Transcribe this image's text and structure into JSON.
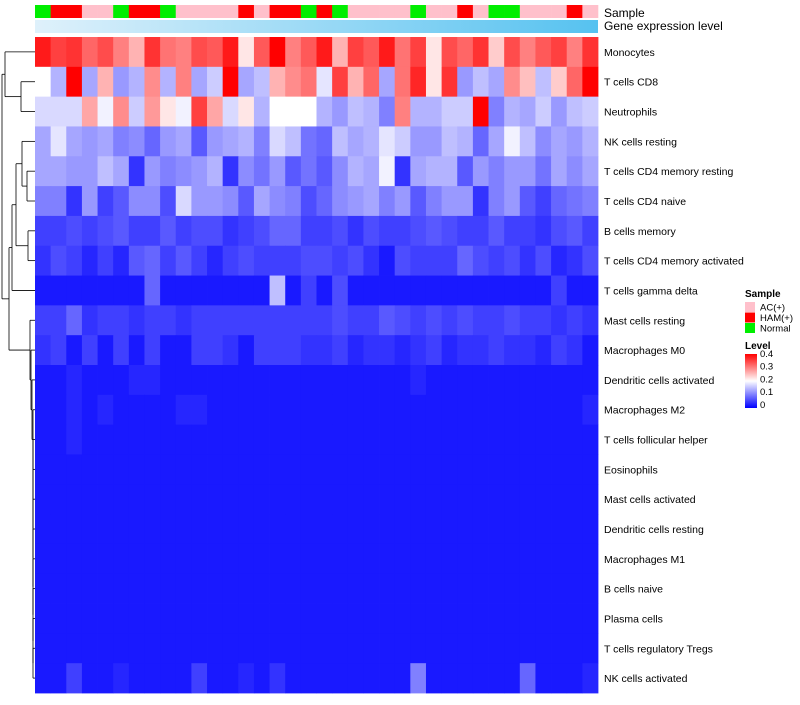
{
  "chart_data": {
    "type": "heatmap",
    "title": "",
    "annotation_labels": [
      "Sample",
      "Gene expression level"
    ],
    "sample_groups": [
      "AC(+)",
      "HAM(+)",
      "Normal"
    ],
    "sample_group_colors": {
      "AC(+)": "#ffc0cb",
      "HAM(+)": "#ff0000",
      "Normal": "#00ee00"
    },
    "sample_annotation": [
      "Normal",
      "HAM(+)",
      "HAM(+)",
      "AC(+)",
      "AC(+)",
      "Normal",
      "HAM(+)",
      "HAM(+)",
      "Normal",
      "AC(+)",
      "AC(+)",
      "AC(+)",
      "AC(+)",
      "HAM(+)",
      "AC(+)",
      "HAM(+)",
      "HAM(+)",
      "Normal",
      "HAM(+)",
      "Normal",
      "AC(+)",
      "AC(+)",
      "AC(+)",
      "AC(+)",
      "Normal",
      "AC(+)",
      "AC(+)",
      "HAM(+)",
      "AC(+)",
      "Normal",
      "Normal",
      "AC(+)",
      "AC(+)",
      "AC(+)",
      "HAM(+)",
      "AC(+)"
    ],
    "rows": [
      "Monocytes",
      "T cells CD8",
      "Neutrophils",
      "NK cells resting",
      "T cells CD4 memory resting",
      "T cells CD4 naive",
      "B cells memory",
      "T cells CD4 memory activated",
      "T cells gamma delta",
      "Mast cells resting",
      "Macrophages M0",
      "Dendritic cells activated",
      "Macrophages M2",
      "T cells follicular helper",
      "Eosinophils",
      "Mast cells activated",
      "Dendritic cells resting",
      "Macrophages M1",
      "B cells naive",
      "Plasma cells",
      "T cells regulatory  Tregs",
      "NK cells activated"
    ],
    "values": [
      [
        0.38,
        0.35,
        0.36,
        0.32,
        0.34,
        0.3,
        0.26,
        0.36,
        0.31,
        0.3,
        0.34,
        0.33,
        0.38,
        0.22,
        0.33,
        0.4,
        0.3,
        0.33,
        0.38,
        0.26,
        0.35,
        0.33,
        0.38,
        0.31,
        0.35,
        0.22,
        0.34,
        0.32,
        0.36,
        0.24,
        0.34,
        0.3,
        0.33,
        0.35,
        0.3,
        0.36
      ],
      [
        0.2,
        0.14,
        0.4,
        0.13,
        0.26,
        0.12,
        0.14,
        0.29,
        0.14,
        0.3,
        0.13,
        0.16,
        0.4,
        0.13,
        0.15,
        0.26,
        0.29,
        0.31,
        0.18,
        0.35,
        0.26,
        0.32,
        0.13,
        0.31,
        0.37,
        0.22,
        0.36,
        0.12,
        0.15,
        0.13,
        0.29,
        0.25,
        0.15,
        0.24,
        0.32,
        0.4
      ],
      [
        0.17,
        0.17,
        0.17,
        0.27,
        0.19,
        0.29,
        0.16,
        0.28,
        0.22,
        0.19,
        0.35,
        0.27,
        0.17,
        0.22,
        0.14,
        0.2,
        0.2,
        0.2,
        0.14,
        0.12,
        0.15,
        0.14,
        0.1,
        0.3,
        0.14,
        0.14,
        0.16,
        0.16,
        0.4,
        0.1,
        0.14,
        0.13,
        0.16,
        0.12,
        0.15,
        0.16
      ],
      [
        0.13,
        0.18,
        0.13,
        0.12,
        0.13,
        0.1,
        0.11,
        0.08,
        0.12,
        0.13,
        0.07,
        0.12,
        0.13,
        0.14,
        0.1,
        0.17,
        0.15,
        0.09,
        0.08,
        0.15,
        0.13,
        0.14,
        0.18,
        0.16,
        0.12,
        0.12,
        0.15,
        0.14,
        0.08,
        0.13,
        0.19,
        0.15,
        0.11,
        0.13,
        0.12,
        0.14
      ],
      [
        0.13,
        0.13,
        0.12,
        0.12,
        0.15,
        0.13,
        0.04,
        0.12,
        0.1,
        0.11,
        0.12,
        0.14,
        0.04,
        0.11,
        0.09,
        0.12,
        0.07,
        0.09,
        0.07,
        0.11,
        0.14,
        0.13,
        0.19,
        0.04,
        0.13,
        0.14,
        0.14,
        0.07,
        0.12,
        0.1,
        0.12,
        0.12,
        0.09,
        0.13,
        0.11,
        0.13
      ],
      [
        0.1,
        0.1,
        0.04,
        0.12,
        0.05,
        0.07,
        0.11,
        0.11,
        0.06,
        0.17,
        0.12,
        0.12,
        0.11,
        0.07,
        0.13,
        0.11,
        0.1,
        0.06,
        0.08,
        0.11,
        0.12,
        0.13,
        0.1,
        0.12,
        0.07,
        0.1,
        0.12,
        0.12,
        0.04,
        0.1,
        0.12,
        0.07,
        0.05,
        0.08,
        0.09,
        0.1
      ],
      [
        0.05,
        0.05,
        0.06,
        0.05,
        0.06,
        0.07,
        0.05,
        0.05,
        0.07,
        0.05,
        0.06,
        0.06,
        0.04,
        0.05,
        0.06,
        0.08,
        0.08,
        0.05,
        0.05,
        0.06,
        0.04,
        0.06,
        0.05,
        0.05,
        0.06,
        0.07,
        0.06,
        0.05,
        0.05,
        0.07,
        0.05,
        0.05,
        0.04,
        0.06,
        0.07,
        0.05
      ],
      [
        0.04,
        0.06,
        0.05,
        0.03,
        0.05,
        0.03,
        0.07,
        0.08,
        0.05,
        0.07,
        0.05,
        0.03,
        0.05,
        0.06,
        0.05,
        0.05,
        0.05,
        0.06,
        0.06,
        0.05,
        0.06,
        0.04,
        0.02,
        0.06,
        0.05,
        0.05,
        0.05,
        0.08,
        0.06,
        0.05,
        0.06,
        0.04,
        0.06,
        0.03,
        0.04,
        0.06
      ],
      [
        0.02,
        0.02,
        0.02,
        0.02,
        0.02,
        0.02,
        0.02,
        0.08,
        0.02,
        0.02,
        0.02,
        0.02,
        0.02,
        0.02,
        0.02,
        0.15,
        0.02,
        0.05,
        0.02,
        0.06,
        0.02,
        0.02,
        0.02,
        0.02,
        0.02,
        0.02,
        0.02,
        0.02,
        0.02,
        0.02,
        0.02,
        0.02,
        0.02,
        0.05,
        0.02,
        0.02
      ],
      [
        0.05,
        0.05,
        0.08,
        0.04,
        0.05,
        0.05,
        0.04,
        0.05,
        0.05,
        0.04,
        0.05,
        0.05,
        0.05,
        0.05,
        0.05,
        0.05,
        0.05,
        0.05,
        0.05,
        0.06,
        0.05,
        0.05,
        0.07,
        0.06,
        0.05,
        0.06,
        0.05,
        0.06,
        0.05,
        0.05,
        0.06,
        0.05,
        0.05,
        0.04,
        0.05,
        0.04
      ],
      [
        0.04,
        0.05,
        0.02,
        0.05,
        0.02,
        0.05,
        0.02,
        0.05,
        0.02,
        0.02,
        0.05,
        0.05,
        0.04,
        0.02,
        0.05,
        0.05,
        0.05,
        0.04,
        0.04,
        0.05,
        0.03,
        0.04,
        0.04,
        0.03,
        0.04,
        0.05,
        0.03,
        0.04,
        0.04,
        0.05,
        0.04,
        0.04,
        0.03,
        0.05,
        0.04,
        0.02
      ],
      [
        0.02,
        0.02,
        0.03,
        0.02,
        0.02,
        0.02,
        0.03,
        0.03,
        0.02,
        0.02,
        0.02,
        0.02,
        0.02,
        0.02,
        0.02,
        0.02,
        0.02,
        0.02,
        0.02,
        0.02,
        0.02,
        0.02,
        0.02,
        0.02,
        0.03,
        0.02,
        0.02,
        0.02,
        0.02,
        0.02,
        0.02,
        0.02,
        0.02,
        0.02,
        0.02,
        0.02
      ],
      [
        0.02,
        0.02,
        0.03,
        0.02,
        0.03,
        0.02,
        0.02,
        0.02,
        0.02,
        0.03,
        0.03,
        0.02,
        0.02,
        0.02,
        0.02,
        0.02,
        0.02,
        0.02,
        0.02,
        0.02,
        0.02,
        0.02,
        0.02,
        0.02,
        0.02,
        0.02,
        0.02,
        0.02,
        0.02,
        0.02,
        0.02,
        0.02,
        0.02,
        0.02,
        0.02,
        0.03
      ],
      [
        0.02,
        0.02,
        0.03,
        0.02,
        0.02,
        0.02,
        0.02,
        0.02,
        0.02,
        0.02,
        0.02,
        0.02,
        0.02,
        0.02,
        0.02,
        0.02,
        0.02,
        0.02,
        0.02,
        0.02,
        0.02,
        0.02,
        0.02,
        0.02,
        0.02,
        0.02,
        0.02,
        0.02,
        0.02,
        0.02,
        0.02,
        0.02,
        0.02,
        0.02,
        0.02,
        0.02
      ],
      [
        0.02,
        0.02,
        0.02,
        0.02,
        0.02,
        0.02,
        0.02,
        0.02,
        0.02,
        0.02,
        0.02,
        0.02,
        0.02,
        0.02,
        0.02,
        0.02,
        0.02,
        0.02,
        0.02,
        0.02,
        0.02,
        0.02,
        0.02,
        0.02,
        0.02,
        0.02,
        0.02,
        0.02,
        0.02,
        0.02,
        0.02,
        0.02,
        0.02,
        0.02,
        0.02,
        0.02
      ],
      [
        0.02,
        0.02,
        0.02,
        0.02,
        0.02,
        0.02,
        0.02,
        0.02,
        0.02,
        0.02,
        0.02,
        0.02,
        0.02,
        0.02,
        0.02,
        0.02,
        0.02,
        0.02,
        0.02,
        0.02,
        0.02,
        0.02,
        0.02,
        0.02,
        0.02,
        0.02,
        0.02,
        0.02,
        0.02,
        0.02,
        0.02,
        0.02,
        0.02,
        0.02,
        0.02,
        0.02
      ],
      [
        0.02,
        0.02,
        0.02,
        0.02,
        0.02,
        0.02,
        0.02,
        0.02,
        0.02,
        0.02,
        0.02,
        0.02,
        0.02,
        0.02,
        0.02,
        0.02,
        0.02,
        0.02,
        0.02,
        0.02,
        0.02,
        0.02,
        0.02,
        0.02,
        0.02,
        0.02,
        0.02,
        0.02,
        0.02,
        0.02,
        0.02,
        0.02,
        0.02,
        0.02,
        0.02,
        0.02
      ],
      [
        0.02,
        0.02,
        0.02,
        0.02,
        0.02,
        0.02,
        0.02,
        0.02,
        0.02,
        0.02,
        0.02,
        0.02,
        0.02,
        0.02,
        0.02,
        0.02,
        0.02,
        0.02,
        0.02,
        0.02,
        0.02,
        0.02,
        0.02,
        0.02,
        0.02,
        0.02,
        0.02,
        0.02,
        0.02,
        0.02,
        0.02,
        0.02,
        0.02,
        0.02,
        0.02,
        0.02
      ],
      [
        0.02,
        0.02,
        0.02,
        0.02,
        0.02,
        0.02,
        0.02,
        0.02,
        0.02,
        0.02,
        0.02,
        0.02,
        0.02,
        0.02,
        0.02,
        0.02,
        0.02,
        0.02,
        0.02,
        0.02,
        0.02,
        0.02,
        0.02,
        0.02,
        0.02,
        0.02,
        0.02,
        0.02,
        0.02,
        0.02,
        0.02,
        0.02,
        0.02,
        0.02,
        0.02,
        0.02
      ],
      [
        0.02,
        0.02,
        0.02,
        0.02,
        0.02,
        0.02,
        0.02,
        0.02,
        0.02,
        0.02,
        0.02,
        0.02,
        0.02,
        0.02,
        0.02,
        0.02,
        0.02,
        0.02,
        0.02,
        0.02,
        0.02,
        0.02,
        0.02,
        0.02,
        0.02,
        0.02,
        0.02,
        0.02,
        0.02,
        0.02,
        0.02,
        0.02,
        0.02,
        0.02,
        0.02,
        0.02
      ],
      [
        0.02,
        0.02,
        0.02,
        0.02,
        0.02,
        0.02,
        0.02,
        0.02,
        0.02,
        0.02,
        0.02,
        0.02,
        0.02,
        0.02,
        0.02,
        0.02,
        0.02,
        0.02,
        0.02,
        0.02,
        0.02,
        0.02,
        0.02,
        0.02,
        0.02,
        0.02,
        0.02,
        0.02,
        0.02,
        0.02,
        0.02,
        0.02,
        0.02,
        0.02,
        0.02,
        0.02
      ],
      [
        0.02,
        0.02,
        0.05,
        0.02,
        0.02,
        0.03,
        0.02,
        0.02,
        0.02,
        0.02,
        0.05,
        0.02,
        0.02,
        0.03,
        0.02,
        0.04,
        0.02,
        0.02,
        0.02,
        0.02,
        0.02,
        0.02,
        0.02,
        0.02,
        0.1,
        0.02,
        0.02,
        0.02,
        0.02,
        0.02,
        0.02,
        0.08,
        0.02,
        0.02,
        0.02,
        0.03
      ]
    ],
    "color_scale": {
      "title": "Level",
      "min": 0,
      "max": 0.4,
      "ticks": [
        "0.4",
        "0.3",
        "0.2",
        "0.1",
        "0"
      ],
      "colors": [
        "#0000ff",
        "#ffffff",
        "#ff0000"
      ]
    },
    "legend_sample_title": "Sample",
    "legend_position": "right"
  }
}
